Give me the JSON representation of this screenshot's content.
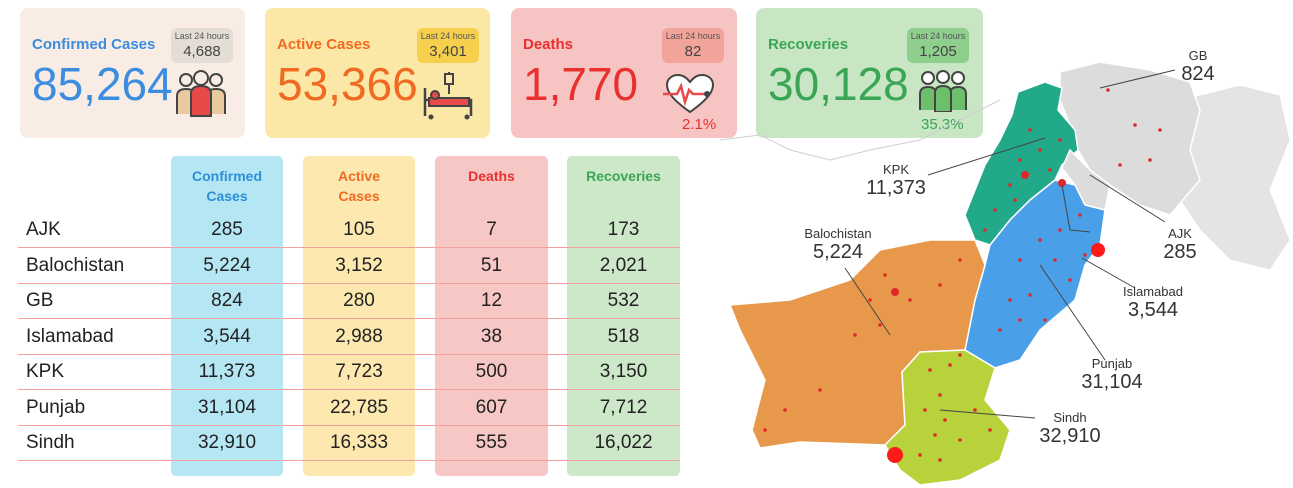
{
  "cards": [
    {
      "title": "Confirmed Cases",
      "value": "85,264",
      "badge_label": "Last 24 hours",
      "badge_value": "4,688",
      "pct": ""
    },
    {
      "title": "Active Cases",
      "value": "53,366",
      "badge_label": "Last 24 hours",
      "badge_value": "3,401",
      "pct": ""
    },
    {
      "title": "Deaths",
      "value": "1,770",
      "badge_label": "Last 24 hours",
      "badge_value": "82",
      "pct": "2.1%"
    },
    {
      "title": "Recoveries",
      "value": "30,128",
      "badge_label": "Last 24 hours",
      "badge_value": "1,205",
      "pct": "35.3%"
    }
  ],
  "table": {
    "headers": {
      "confirmed": [
        "Confirmed",
        "Cases"
      ],
      "active": [
        "Active",
        "Cases"
      ],
      "deaths": "Deaths",
      "recoveries": "Recoveries"
    },
    "rows": [
      {
        "region": "AJK",
        "confirmed": "285",
        "active": "105",
        "deaths": "7",
        "recoveries": "173"
      },
      {
        "region": "Balochistan",
        "confirmed": "5,224",
        "active": "3,152",
        "deaths": "51",
        "recoveries": "2,021"
      },
      {
        "region": "GB",
        "confirmed": "824",
        "active": "280",
        "deaths": "12",
        "recoveries": "532"
      },
      {
        "region": "Islamabad",
        "confirmed": "3,544",
        "active": "2,988",
        "deaths": "38",
        "recoveries": "518"
      },
      {
        "region": "KPK",
        "confirmed": "11,373",
        "active": "7,723",
        "deaths": "500",
        "recoveries": "3,150"
      },
      {
        "region": "Punjab",
        "confirmed": "31,104",
        "active": "22,785",
        "deaths": "607",
        "recoveries": "7,712"
      },
      {
        "region": "Sindh",
        "confirmed": "32,910",
        "active": "16,333",
        "deaths": "555",
        "recoveries": "16,022"
      }
    ]
  },
  "map_labels": {
    "gb": {
      "name": "GB",
      "value": "824"
    },
    "kpk": {
      "name": "KPK",
      "value": "11,373"
    },
    "ajk": {
      "name": "AJK",
      "value": "285"
    },
    "balochistan": {
      "name": "Balochistan",
      "value": "5,224"
    },
    "islamabad": {
      "name": "Islamabad",
      "value": "3,544"
    },
    "punjab": {
      "name": "Punjab",
      "value": "31,104"
    },
    "sindh": {
      "name": "Sindh",
      "value": "32,910"
    }
  },
  "colors": {
    "confirmed_bg": "#f8ece4",
    "confirmed_text": "#3a8de0",
    "confirmed_badge": "#e4ddd6",
    "active_bg": "#fbe7a6",
    "active_text": "#f06a22",
    "active_badge": "#f6cf4d",
    "deaths_bg": "#f6c5c3",
    "deaths_text": "#e8312f",
    "deaths_badge": "#f2a49a",
    "recoveries_bg": "#c8e6c4",
    "recoveries_text": "#3aa655",
    "recoveries_badge": "#8fcf8e",
    "col_confirmed": "#b4e6f4",
    "col_active": "#fde9b0",
    "col_deaths": "#f6c7c5",
    "col_recoveries": "#cde7c9",
    "map_gb": "#dcdcdc",
    "map_kpk": "#22a98a",
    "map_punjab": "#4aa0e8",
    "map_balochistan": "#e8984a",
    "map_sindh": "#b8d23c",
    "dots": "#e0282a"
  },
  "icons": [
    "people-group-icon",
    "hospital-bed-icon",
    "heartbeat-icon",
    "recovered-people-icon"
  ]
}
